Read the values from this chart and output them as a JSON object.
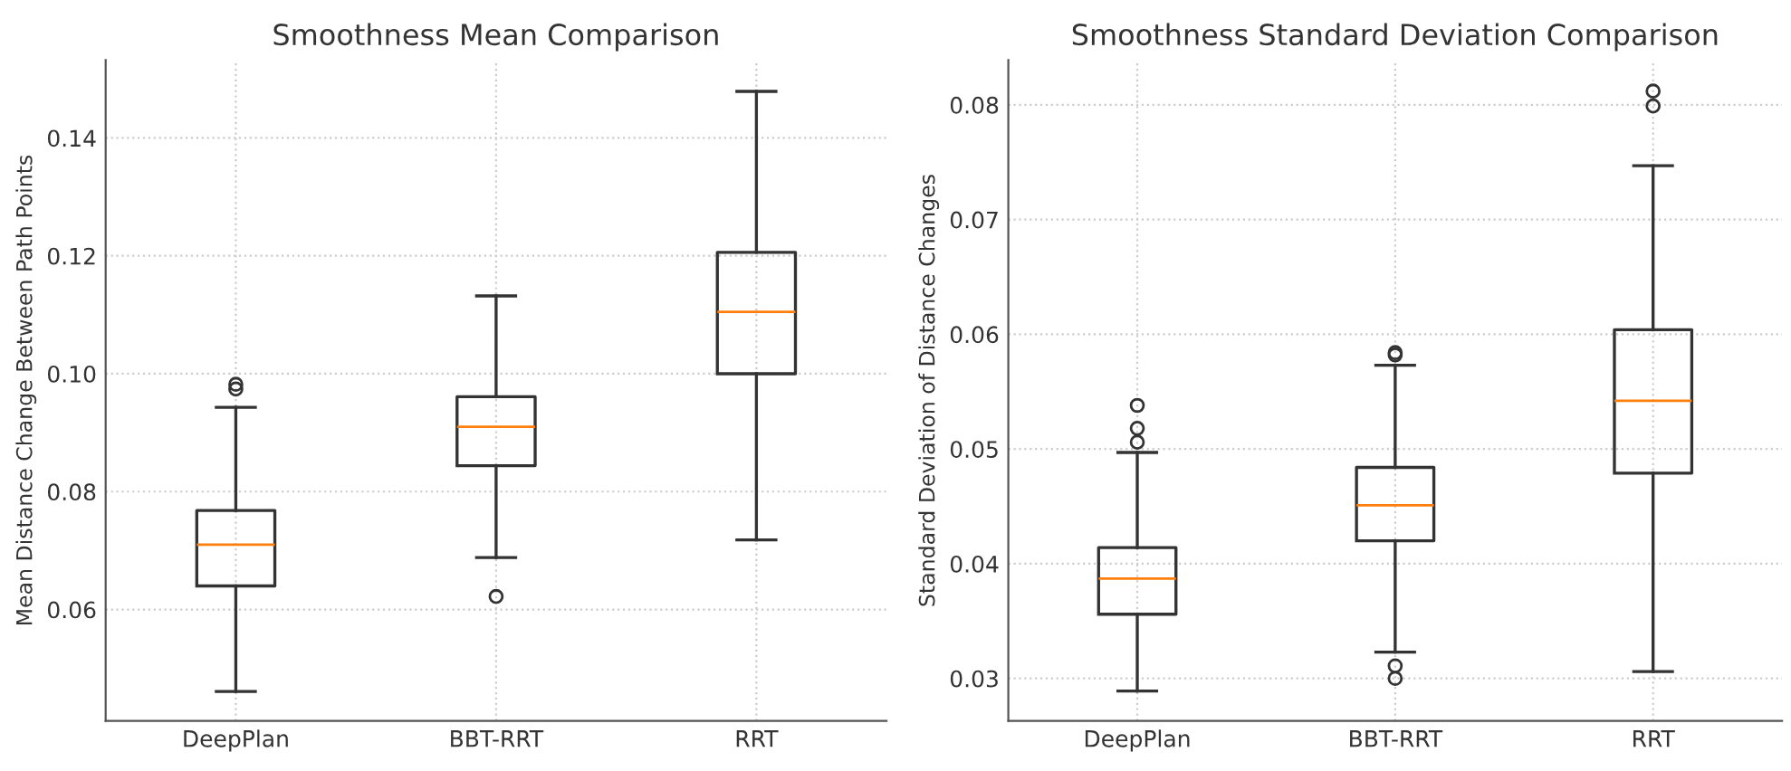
{
  "chart_data": [
    {
      "type": "box",
      "title": "Smoothness Mean Comparison",
      "ylabel": "Mean Distance Change Between Path Points",
      "categories": [
        "DeepPlan",
        "BBT-RRT",
        "RRT"
      ],
      "boxes": [
        {
          "low": 0.0461,
          "q1": 0.064,
          "median": 0.071,
          "q3": 0.0768,
          "high": 0.0943,
          "outliers": [
            0.0982,
            0.0974
          ]
        },
        {
          "low": 0.0688,
          "q1": 0.0844,
          "median": 0.091,
          "q3": 0.0961,
          "high": 0.1132,
          "outliers": [
            0.0622
          ]
        },
        {
          "low": 0.0718,
          "q1": 0.1,
          "median": 0.1105,
          "q3": 0.1206,
          "high": 0.1479
        }
      ],
      "ylim": [
        0.0411,
        0.1532
      ],
      "yticks": [
        {
          "value": 0.06,
          "label": "0.06"
        },
        {
          "value": 0.08,
          "label": "0.08"
        },
        {
          "value": 0.1,
          "label": "0.10"
        },
        {
          "value": 0.12,
          "label": "0.12"
        },
        {
          "value": 0.14,
          "label": "0.14"
        }
      ],
      "grid": true
    },
    {
      "type": "box",
      "title": "Smoothness Standard Deviation Comparison",
      "ylabel": "Standard Deviation of Distance Changes",
      "categories": [
        "DeepPlan",
        "BBT-RRT",
        "RRT"
      ],
      "boxes": [
        {
          "low": 0.0289,
          "q1": 0.0356,
          "median": 0.0387,
          "q3": 0.0414,
          "high": 0.0497,
          "outliers": [
            0.0538,
            0.0518,
            0.0506
          ]
        },
        {
          "low": 0.0323,
          "q1": 0.042,
          "median": 0.0451,
          "q3": 0.0484,
          "high": 0.0573,
          "outliers": [
            0.0584,
            0.0582,
            0.0311,
            0.03
          ]
        },
        {
          "low": 0.0306,
          "q1": 0.0479,
          "median": 0.0542,
          "q3": 0.0604,
          "high": 0.0747,
          "outliers": [
            0.0812,
            0.0799
          ]
        }
      ],
      "ylim": [
        0.0263,
        0.0839
      ],
      "yticks": [
        {
          "value": 0.03,
          "label": "0.03"
        },
        {
          "value": 0.04,
          "label": "0.04"
        },
        {
          "value": 0.05,
          "label": "0.05"
        },
        {
          "value": 0.06,
          "label": "0.06"
        },
        {
          "value": 0.07,
          "label": "0.07"
        },
        {
          "value": 0.08,
          "label": "0.08"
        }
      ],
      "grid": true
    }
  ]
}
